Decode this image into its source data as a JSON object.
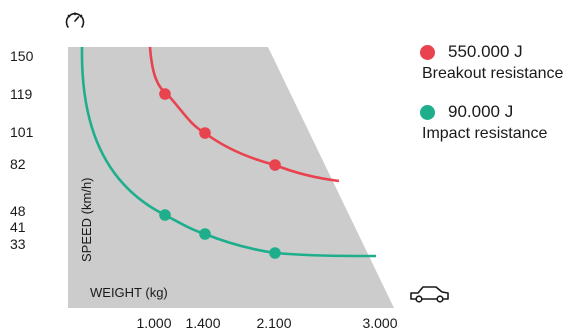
{
  "chart_data": {
    "type": "line",
    "xlabel": "WEIGHT (kg)",
    "ylabel": "SPEED (km/h)",
    "x_ticks": [
      "1.000",
      "1.400",
      "2.100",
      "3.000"
    ],
    "x_tick_values": [
      1000,
      1400,
      2100,
      3000
    ],
    "y_ticks": [
      "150",
      "119",
      "101",
      "82",
      "48",
      "41",
      "33"
    ],
    "y_tick_values": [
      150,
      119,
      101,
      82,
      48,
      41,
      33
    ],
    "series": [
      {
        "name": "550.000 J",
        "label": "Breakout resistance",
        "color": "#e8434f",
        "points": [
          [
            1000,
            119
          ],
          [
            1400,
            101
          ],
          [
            2100,
            82
          ]
        ]
      },
      {
        "name": "90.000 J",
        "label": "Impact resistance",
        "color": "#1fae8c",
        "points": [
          [
            1000,
            48
          ],
          [
            1400,
            41
          ],
          [
            2100,
            33
          ]
        ]
      }
    ],
    "icons": [
      "speedometer-icon",
      "car-icon"
    ],
    "background_color": "#cccccc"
  }
}
